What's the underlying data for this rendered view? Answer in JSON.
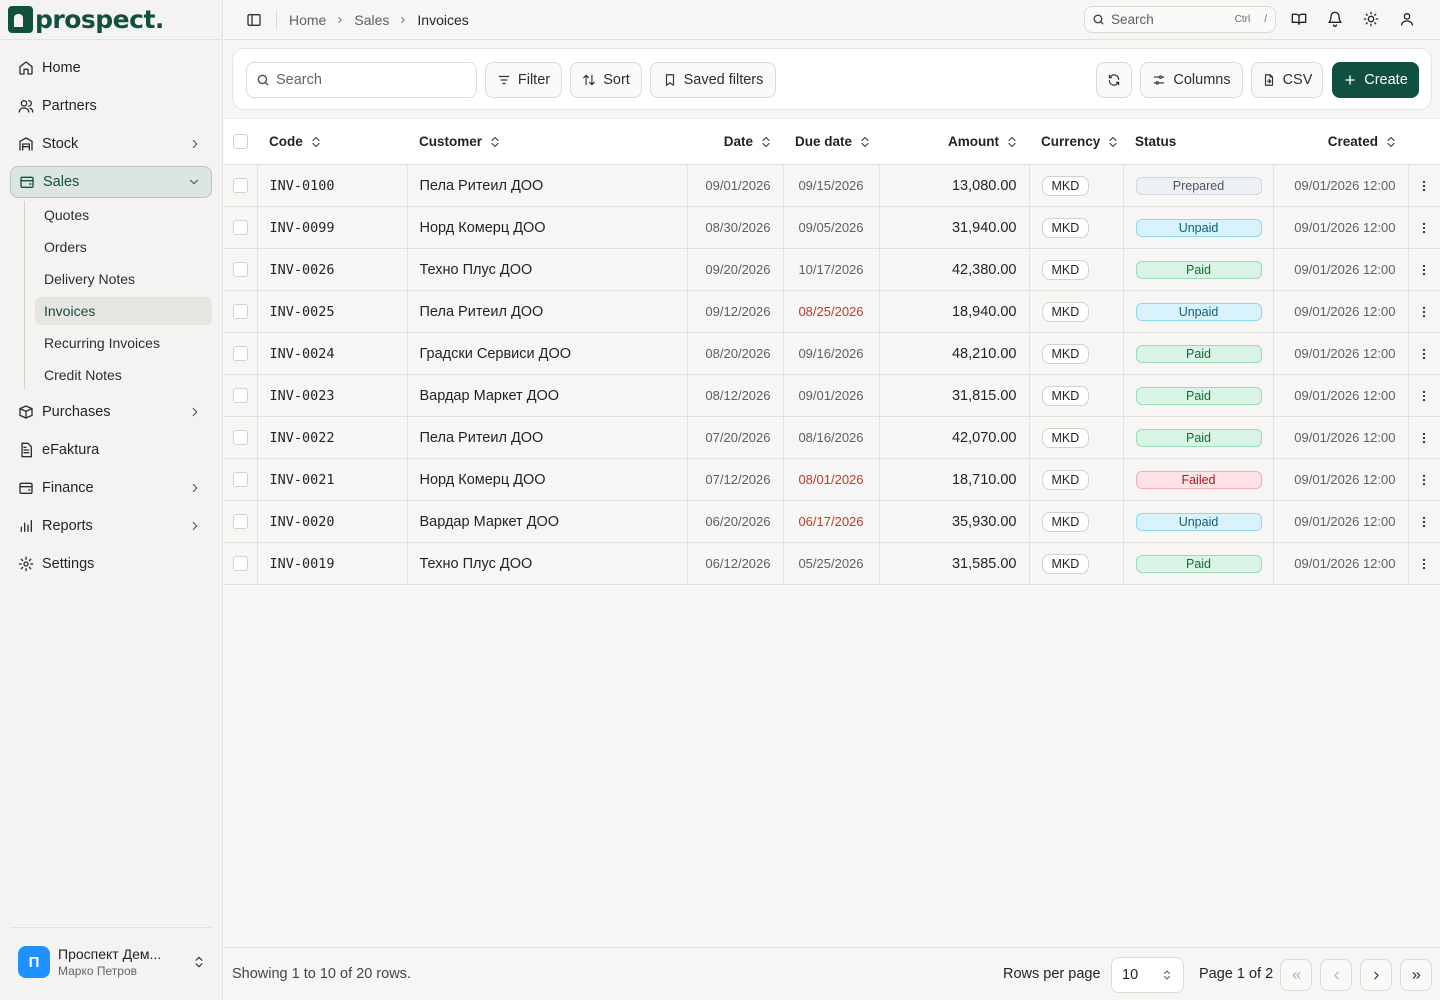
{
  "brand": {
    "name": "prospect.",
    "color": "#114f3e"
  },
  "sidebar": {
    "items": [
      {
        "label": "Home",
        "icon": "home-icon"
      },
      {
        "label": "Partners",
        "icon": "users-icon"
      },
      {
        "label": "Stock",
        "icon": "warehouse-icon",
        "chevron": "chevron-right-icon"
      },
      {
        "label": "Sales",
        "icon": "wallet-icon",
        "chevron": "chevron-down-icon",
        "active": true
      },
      {
        "label": "Purchases",
        "icon": "package-icon",
        "chevron": "chevron-right-icon"
      },
      {
        "label": "eFaktura",
        "icon": "file-text-icon"
      },
      {
        "label": "Finance",
        "icon": "wallet-icon",
        "chevron": "chevron-right-icon"
      },
      {
        "label": "Reports",
        "icon": "bar-chart-icon",
        "chevron": "chevron-right-icon"
      },
      {
        "label": "Settings",
        "icon": "gear-icon"
      }
    ],
    "sales_sub": [
      "Quotes",
      "Orders",
      "Delivery Notes",
      "Invoices",
      "Recurring Invoices",
      "Credit Notes"
    ],
    "org": {
      "avatar": "П",
      "name": "Проспект Дем...",
      "user": "Марко Петров"
    }
  },
  "topbar": {
    "breadcrumb": [
      "Home",
      "Sales",
      "Invoices"
    ],
    "search_label": "Search",
    "kbd_ctrl": "Ctrl",
    "kbd_key": "/"
  },
  "toolbar": {
    "search_placeholder": "Search",
    "filter": "Filter",
    "sort": "Sort",
    "saved_filters": "Saved filters",
    "columns": "Columns",
    "csv": "CSV",
    "create": "Create"
  },
  "table": {
    "columns": [
      "Code",
      "Customer",
      "Date",
      "Due date",
      "Amount",
      "Currency",
      "Status",
      "Created"
    ],
    "rows": [
      {
        "code": "INV-0100",
        "customer": "Пела Ритеил ДОО",
        "date": "09/01/2026",
        "due": "09/15/2026",
        "overdue": false,
        "amount": "13,080.00",
        "currency": "MKD",
        "status": "Prepared",
        "created": "09/01/2026 12:00"
      },
      {
        "code": "INV-0099",
        "customer": "Норд Комерц ДОО",
        "date": "08/30/2026",
        "due": "09/05/2026",
        "overdue": false,
        "amount": "31,940.00",
        "currency": "MKD",
        "status": "Unpaid",
        "created": "09/01/2026 12:00"
      },
      {
        "code": "INV-0026",
        "customer": "Техно Плус ДОО",
        "date": "09/20/2026",
        "due": "10/17/2026",
        "overdue": false,
        "amount": "42,380.00",
        "currency": "MKD",
        "status": "Paid",
        "created": "09/01/2026 12:00"
      },
      {
        "code": "INV-0025",
        "customer": "Пела Ритеил ДОО",
        "date": "09/12/2026",
        "due": "08/25/2026",
        "overdue": true,
        "amount": "18,940.00",
        "currency": "MKD",
        "status": "Unpaid",
        "created": "09/01/2026 12:00"
      },
      {
        "code": "INV-0024",
        "customer": "Градски Сервиси ДОО",
        "date": "08/20/2026",
        "due": "09/16/2026",
        "overdue": false,
        "amount": "48,210.00",
        "currency": "MKD",
        "status": "Paid",
        "created": "09/01/2026 12:00"
      },
      {
        "code": "INV-0023",
        "customer": "Вардар Маркет ДОО",
        "date": "08/12/2026",
        "due": "09/01/2026",
        "overdue": false,
        "amount": "31,815.00",
        "currency": "MKD",
        "status": "Paid",
        "created": "09/01/2026 12:00"
      },
      {
        "code": "INV-0022",
        "customer": "Пела Ритеил ДОО",
        "date": "07/20/2026",
        "due": "08/16/2026",
        "overdue": false,
        "amount": "42,070.00",
        "currency": "MKD",
        "status": "Paid",
        "created": "09/01/2026 12:00"
      },
      {
        "code": "INV-0021",
        "customer": "Норд Комерц ДОО",
        "date": "07/12/2026",
        "due": "08/01/2026",
        "overdue": true,
        "amount": "18,710.00",
        "currency": "MKD",
        "status": "Failed",
        "created": "09/01/2026 12:00"
      },
      {
        "code": "INV-0020",
        "customer": "Вардар Маркет ДОО",
        "date": "06/20/2026",
        "due": "06/17/2026",
        "overdue": true,
        "amount": "35,930.00",
        "currency": "MKD",
        "status": "Unpaid",
        "created": "09/01/2026 12:00"
      },
      {
        "code": "INV-0019",
        "customer": "Техно Плус ДОО",
        "date": "06/12/2026",
        "due": "05/25/2026",
        "overdue": false,
        "amount": "31,585.00",
        "currency": "MKD",
        "status": "Paid",
        "created": "09/01/2026 12:00"
      }
    ]
  },
  "footer": {
    "showing": "Showing 1 to 10 of 20 rows.",
    "rows_per_page_label": "Rows per page",
    "rows_per_page": "10",
    "page_label": "Page 1 of 2"
  }
}
